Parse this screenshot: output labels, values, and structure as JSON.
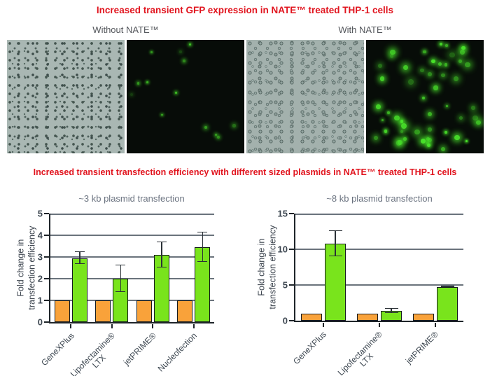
{
  "colors": {
    "title_red": "#e1141e",
    "bar_orange": "#f9a23a",
    "bar_green": "#79e41c",
    "axis": "#1e2429",
    "gridline": "#6a737c",
    "gfp_green": "#4ae62b"
  },
  "section1": {
    "title": "Increased transient GFP expression in NATE™ treated THP-1 cells",
    "groups": [
      {
        "label": "Without NATE™",
        "panels": [
          {
            "type": "brightfield",
            "description": "dense THP-1 cell monolayer, phase contrast"
          },
          {
            "type": "fluorescence",
            "description": "few dim GFP-positive cells",
            "gfp_cells": 13,
            "seed": 3,
            "dot_min_r": 1.0,
            "dot_max_r": 2.4,
            "min_opacity": 0.22,
            "max_opacity": 0.95,
            "dot_color": "#4ae62b"
          }
        ]
      },
      {
        "label": "With NATE™",
        "panels": [
          {
            "type": "brightfield",
            "description": "dense THP-1 cell monolayer, phase contrast"
          },
          {
            "type": "fluorescence",
            "description": "many bright GFP-positive cells",
            "gfp_cells": 52,
            "seed": 9,
            "dot_min_r": 1.6,
            "dot_max_r": 4.0,
            "min_opacity": 0.38,
            "max_opacity": 1.0,
            "dot_color": "#4ae62b"
          }
        ]
      }
    ]
  },
  "section2": {
    "title": "Increased transient transfection efficiency with different sized plasmids in NATE™ treated THP-1 cells"
  },
  "chart_data": [
    {
      "type": "bar",
      "title": "~3 kb plasmid transfection",
      "ylabel": "Fold change in\ntransfection efficiency",
      "xlabel": "",
      "ylim": [
        0,
        5
      ],
      "yticks": [
        0,
        1,
        2,
        3,
        4,
        5
      ],
      "grid": true,
      "legend_position": "none",
      "categories": [
        "GeneXPlus",
        "Lipofectamine®\nLTX",
        "jetPRIME®",
        "Nucleofection"
      ],
      "series": [
        {
          "name": "series-orange",
          "color": "#f9a23a",
          "values": [
            1,
            1,
            1,
            1
          ],
          "errors": [
            0,
            0,
            0,
            0
          ]
        },
        {
          "name": "series-green",
          "color": "#79e41c",
          "values": [
            2.95,
            2.0,
            3.1,
            3.45
          ],
          "errors": [
            0.32,
            0.65,
            0.62,
            0.72
          ]
        }
      ]
    },
    {
      "type": "bar",
      "title": "~8 kb plasmid transfection",
      "ylabel": "Fold change in\ntransfection efficiency",
      "xlabel": "",
      "ylim": [
        0,
        15
      ],
      "yticks": [
        0,
        5,
        10,
        15
      ],
      "grid": true,
      "legend_position": "none",
      "categories": [
        "GeneXPlus",
        "Lipofectamine®\nLTX",
        "jetPRIME®"
      ],
      "series": [
        {
          "name": "series-orange",
          "color": "#f9a23a",
          "values": [
            1,
            1,
            1
          ],
          "errors": [
            0,
            0,
            0
          ]
        },
        {
          "name": "series-green",
          "color": "#79e41c",
          "values": [
            10.8,
            1.4,
            4.75
          ],
          "errors": [
            1.85,
            0.4,
            0.15
          ]
        }
      ]
    }
  ]
}
